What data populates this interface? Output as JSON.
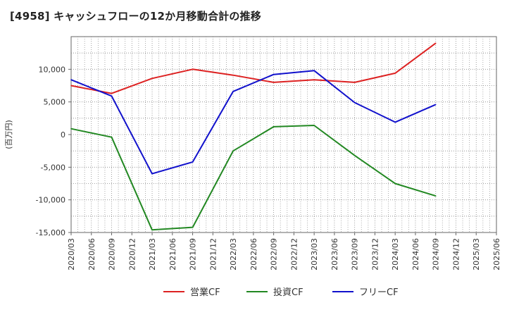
{
  "title": "[4958]  キャッシュフローの12か月移動合計の推移",
  "chart_data": {
    "type": "line",
    "title": "[4958]  キャッシュフローの12か月移動合計の推移",
    "xlabel": "",
    "ylabel": "(百万円)",
    "ylim": [
      -15000,
      15000
    ],
    "yticks": [
      10000,
      5000,
      0,
      -5000,
      -10000,
      -15000
    ],
    "ytick_labels": [
      "10,000",
      "5,000",
      "0",
      "-5,000",
      "-10,000",
      "-15,000"
    ],
    "categories": [
      "2020/03",
      "2020/06",
      "2020/09",
      "2020/12",
      "2021/03",
      "2021/06",
      "2021/09",
      "2021/12",
      "2022/03",
      "2022/06",
      "2022/09",
      "2022/12",
      "2023/03",
      "2023/06",
      "2023/09",
      "2023/12",
      "2024/03",
      "2024/06",
      "2024/09",
      "2024/12",
      "2025/03",
      "2025/06"
    ],
    "grid": true,
    "legend_position": "bottom",
    "series": [
      {
        "name": "営業CF",
        "color": "#dd2222",
        "points": [
          {
            "x": "2020/03",
            "y": 7500
          },
          {
            "x": "2020/09",
            "y": 6300
          },
          {
            "x": "2021/03",
            "y": 8600
          },
          {
            "x": "2021/09",
            "y": 10000
          },
          {
            "x": "2022/03",
            "y": 9100
          },
          {
            "x": "2022/09",
            "y": 8000
          },
          {
            "x": "2023/03",
            "y": 8400
          },
          {
            "x": "2023/09",
            "y": 8000
          },
          {
            "x": "2024/03",
            "y": 9400
          },
          {
            "x": "2024/09",
            "y": 14000
          }
        ]
      },
      {
        "name": "投資CF",
        "color": "#228822",
        "points": [
          {
            "x": "2020/03",
            "y": 900
          },
          {
            "x": "2020/09",
            "y": -400
          },
          {
            "x": "2021/03",
            "y": -14600
          },
          {
            "x": "2021/09",
            "y": -14200
          },
          {
            "x": "2022/03",
            "y": -2500
          },
          {
            "x": "2022/09",
            "y": 1200
          },
          {
            "x": "2023/03",
            "y": 1400
          },
          {
            "x": "2023/09",
            "y": -3200
          },
          {
            "x": "2024/03",
            "y": -7500
          },
          {
            "x": "2024/09",
            "y": -9400
          }
        ]
      },
      {
        "name": "フリーCF",
        "color": "#1111cc",
        "points": [
          {
            "x": "2020/03",
            "y": 8400
          },
          {
            "x": "2020/09",
            "y": 5900
          },
          {
            "x": "2021/03",
            "y": -6000
          },
          {
            "x": "2021/09",
            "y": -4200
          },
          {
            "x": "2022/03",
            "y": 6600
          },
          {
            "x": "2022/09",
            "y": 9200
          },
          {
            "x": "2023/03",
            "y": 9800
          },
          {
            "x": "2023/09",
            "y": 4900
          },
          {
            "x": "2024/03",
            "y": 1900
          },
          {
            "x": "2024/09",
            "y": 4600
          }
        ]
      }
    ]
  }
}
